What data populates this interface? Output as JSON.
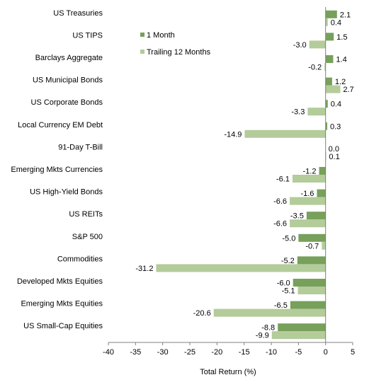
{
  "chart_data": {
    "type": "bar",
    "orientation": "horizontal",
    "title": "",
    "xlabel": "Total Return (%)",
    "ylabel": "",
    "xlim": [
      -40,
      5
    ],
    "xticks": [
      "-40",
      "-35",
      "-30",
      "-25",
      "-20",
      "-15",
      "-10",
      "-5",
      "0",
      "5"
    ],
    "xtick_values": [
      -40,
      -35,
      -30,
      -25,
      -20,
      -15,
      -10,
      -5,
      0,
      5
    ],
    "grid": false,
    "legend_position": "top-right",
    "categories": [
      "US Treasuries",
      "US TIPS",
      "Barclays Aggregate",
      "US Municipal Bonds",
      "US Corporate Bonds",
      "Local Currency EM Debt",
      "91-Day T-Bill",
      "Emerging Mkts Currencies",
      "US High-Yield Bonds",
      "US REITs",
      "S&P 500",
      "Commodities",
      "Developed Mkts Equities",
      "Emerging Mkts Equities",
      "US Small-Cap Equities"
    ],
    "series": [
      {
        "name": "1 Month",
        "color": "#77a05a",
        "values": [
          2.1,
          1.5,
          1.4,
          1.2,
          0.4,
          0.3,
          0.0,
          -1.2,
          -1.6,
          -3.5,
          -5.0,
          -5.2,
          -6.0,
          -6.5,
          -8.8
        ],
        "labels": [
          "2.1",
          "1.5",
          "1.4",
          "1.2",
          "0.4",
          "0.3",
          "0.0",
          "-1.2",
          "-1.6",
          "-3.5",
          "-5.0",
          "-5.2",
          "-6.0",
          "-6.5",
          "-8.8"
        ]
      },
      {
        "name": "Trailing 12 Months",
        "color": "#b3cc9a",
        "values": [
          0.4,
          -3.0,
          -0.2,
          2.7,
          -3.3,
          -14.9,
          0.1,
          -6.1,
          -6.6,
          -6.6,
          -0.7,
          -31.2,
          -5.1,
          -20.6,
          -9.9
        ],
        "labels": [
          "0.4",
          "-3.0",
          "-0.2",
          "2.7",
          "-3.3",
          "-14.9",
          "0.1",
          "-6.1",
          "-6.6",
          "-6.6",
          "-0.7",
          "-31.2",
          "-5.1",
          "-20.6",
          "-9.9"
        ]
      }
    ]
  }
}
